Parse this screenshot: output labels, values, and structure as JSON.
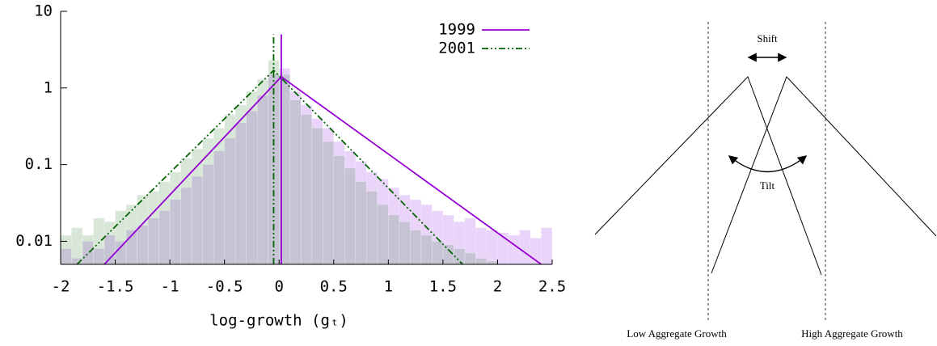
{
  "chart_data": {
    "type": "histogram",
    "log_y": true,
    "grid": false,
    "legend": "upper right",
    "x_label": "log-growth (gₜ)",
    "xlim": [
      -2,
      2.5
    ],
    "xticks": [
      -2,
      -1.5,
      -1,
      -0.5,
      0,
      0.5,
      1,
      1.5,
      2,
      2.5
    ],
    "ylim": [
      0.005,
      10
    ],
    "yticks": [
      0.01,
      0.1,
      1,
      10
    ],
    "bins": [
      -2,
      -1.9,
      -1.8,
      -1.7,
      -1.6,
      -1.5,
      -1.4,
      -1.3,
      -1.2,
      -1.1,
      -1,
      -0.9,
      -0.8,
      -0.7,
      -0.6,
      -0.5,
      -0.4,
      -0.3,
      -0.2,
      -0.1,
      0,
      0.1,
      0.2,
      0.3,
      0.4,
      0.5,
      0.6,
      0.7,
      0.8,
      0.9,
      1,
      1.1,
      1.2,
      1.3,
      1.4,
      1.5,
      1.6,
      1.7,
      1.8,
      1.9,
      2,
      2.1,
      2.2,
      2.3,
      2.4,
      2.5
    ],
    "histograms": [
      {
        "color": "rgba(160, 60, 230, 0.22)",
        "values": [
          0.008,
          0.006,
          0.01,
          0.008,
          0.012,
          0.01,
          0.014,
          0.016,
          0.02,
          0.025,
          0.035,
          0.05,
          0.07,
          0.1,
          0.15,
          0.22,
          0.35,
          0.5,
          0.8,
          1.5,
          1.8,
          0.9,
          0.6,
          0.4,
          0.3,
          0.2,
          0.15,
          0.11,
          0.08,
          0.065,
          0.05,
          0.04,
          0.035,
          0.03,
          0.025,
          0.022,
          0.018,
          0.02,
          0.015,
          0.014,
          0.013,
          0.012,
          0.014,
          0.011,
          0.015
        ]
      },
      {
        "color": "rgba(40, 120, 40, 0.18)",
        "values": [
          0.012,
          0.015,
          0.012,
          0.02,
          0.018,
          0.025,
          0.03,
          0.04,
          0.045,
          0.06,
          0.08,
          0.12,
          0.16,
          0.22,
          0.3,
          0.45,
          0.6,
          0.9,
          1.3,
          2.3,
          1.5,
          0.7,
          0.45,
          0.3,
          0.2,
          0.13,
          0.09,
          0.06,
          0.045,
          0.03,
          0.022,
          0.018,
          0.014,
          0.012,
          0.01,
          0.009,
          0.008,
          0.007,
          0.006,
          0.0055,
          null,
          null,
          null,
          null,
          null
        ]
      }
    ],
    "series": [
      {
        "name": "1999",
        "color": "#9400d3",
        "dash": "solid",
        "x": [
          -1.6,
          0.02,
          2.4,
          0.02,
          0.02,
          0.02
        ],
        "values": [
          0.005,
          1.4,
          0.005,
          null,
          0.005,
          5
        ]
      },
      {
        "name": "2001",
        "color": "#006400",
        "dash": "dashdot",
        "x": [
          -1.85,
          -0.05,
          1.68,
          -0.05,
          -0.05,
          -0.05
        ],
        "values": [
          0.005,
          1.7,
          0.005,
          null,
          0.005,
          5
        ]
      }
    ]
  },
  "diagram": {
    "shift_label": "Shift",
    "tilt_label": "Tilt",
    "low_label": "Low Aggregate Growth",
    "high_label": "High Aggregate Growth"
  }
}
